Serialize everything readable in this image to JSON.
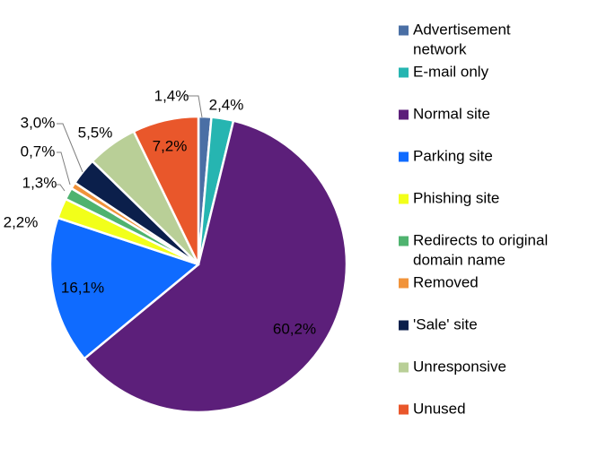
{
  "chart_data": {
    "type": "pie",
    "title": "",
    "start_angle_deg": 0,
    "direction": "clockwise",
    "legend_position": "right",
    "slices": [
      {
        "label": "Advertisement network",
        "value": 1.4,
        "display": "1,4%",
        "color": "#4a6fa5"
      },
      {
        "label": "E-mail only",
        "value": 2.4,
        "display": "2,4%",
        "color": "#26b5b1"
      },
      {
        "label": "Normal site",
        "value": 60.2,
        "display": "60,2%",
        "color": "#5c1f7a"
      },
      {
        "label": "Parking site",
        "value": 16.1,
        "display": "16,1%",
        "color": "#0f6bff"
      },
      {
        "label": "Phishing site",
        "value": 2.2,
        "display": "2,2%",
        "color": "#f2ff1a"
      },
      {
        "label": "Redirects to original domain name",
        "value": 1.3,
        "display": "1,3%",
        "color": "#4fb36f"
      },
      {
        "label": "Removed",
        "value": 0.7,
        "display": "0,7%",
        "color": "#f1933a"
      },
      {
        "label": "'Sale' site",
        "value": 3.0,
        "display": "3,0%",
        "color": "#0b1f4b"
      },
      {
        "label": "Unresponsive",
        "value": 5.5,
        "display": "5,5%",
        "color": "#b9cf97"
      },
      {
        "label": "Unused",
        "value": 7.2,
        "display": "7,2%",
        "color": "#e9572b"
      }
    ]
  },
  "legend": {
    "items": [
      {
        "lines": [
          "Advertisement",
          "network"
        ],
        "color": "#4a6fa5"
      },
      {
        "lines": [
          "E-mail only"
        ],
        "color": "#26b5b1"
      },
      {
        "lines": [
          "Normal site"
        ],
        "color": "#5c1f7a"
      },
      {
        "lines": [
          "Parking site"
        ],
        "color": "#0f6bff"
      },
      {
        "lines": [
          "Phishing site"
        ],
        "color": "#f2ff1a"
      },
      {
        "lines": [
          "Redirects to original",
          "domain name"
        ],
        "color": "#4fb36f"
      },
      {
        "lines": [
          "Removed"
        ],
        "color": "#f1933a"
      },
      {
        "lines": [
          "'Sale' site"
        ],
        "color": "#0b1f4b"
      },
      {
        "lines": [
          "Unresponsive"
        ],
        "color": "#b9cf97"
      },
      {
        "lines": [
          "Unused"
        ],
        "color": "#e9572b"
      }
    ]
  }
}
